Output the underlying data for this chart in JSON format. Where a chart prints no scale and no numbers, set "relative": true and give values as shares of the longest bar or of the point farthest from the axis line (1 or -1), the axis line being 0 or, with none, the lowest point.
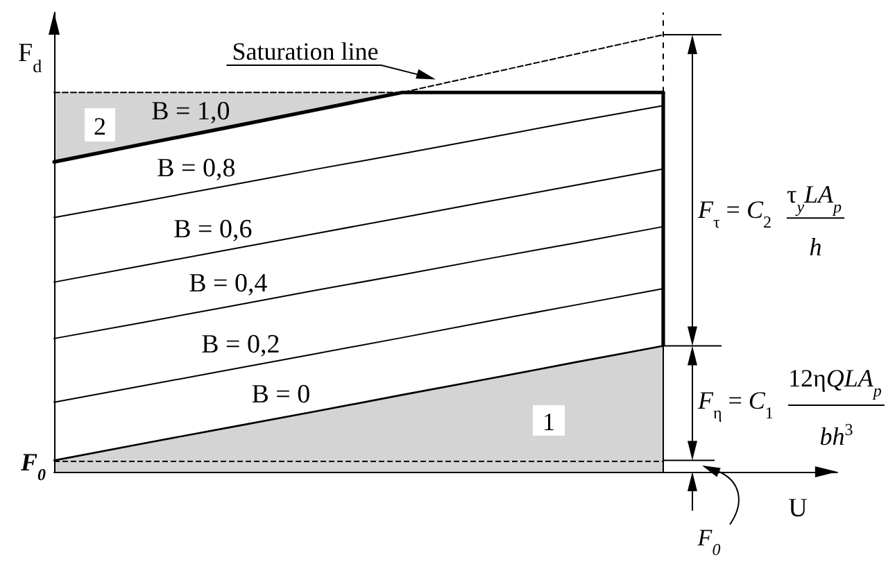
{
  "chart_data": {
    "type": "line",
    "relative": true,
    "marker": "none",
    "line_style": "solid",
    "xlabel": "U",
    "ylabel": "F$_{d}$",
    "categories": [
      null,
      null,
      null,
      null,
      null,
      null,
      null,
      null,
      null,
      null
    ],
    "series": [
      {
        "color": "#000000",
        "line_style": "dashed",
        "values": [
          0.868,
          0.868,
          0.868,
          0.868,
          0.868,
          0.912,
          0.956,
          1,
          null,
          null
        ],
        "lower": [
          0.709,
          0.749,
          0.788,
          0.828,
          0.868,
          null,
          null,
          null,
          null,
          null
        ],
        "upper": [
          0.868,
          0.868,
          0.868,
          0.868,
          0.868,
          null,
          null,
          null,
          null,
          null
        ]
      },
      {
        "name": "B = 1,0",
        "color": "#000000",
        "values": [
          0.709,
          0.749,
          0.788,
          0.828,
          0.868,
          0.868,
          0.868,
          0.868,
          null,
          null
        ]
      },
      {
        "name": "B = 0,8",
        "color": "#000000",
        "values": [
          0.582,
          0.618,
          0.655,
          0.692,
          0.728,
          0.765,
          0.802,
          0.838,
          null,
          null
        ]
      },
      {
        "name": "B = 0,6",
        "color": "#000000",
        "values": [
          0.434,
          0.471,
          0.508,
          0.545,
          0.582,
          0.619,
          0.656,
          0.693,
          null,
          null
        ]
      },
      {
        "name": "B = 0,4",
        "color": "#000000",
        "values": [
          0.305,
          0.341,
          0.378,
          0.415,
          0.451,
          0.488,
          0.524,
          0.561,
          null,
          null
        ]
      },
      {
        "name": "B = 0,2",
        "color": "#000000",
        "values": [
          0.159,
          0.196,
          0.233,
          0.27,
          0.307,
          0.345,
          0.382,
          0.419,
          null,
          null
        ]
      },
      {
        "name": "B = 0",
        "type": "area",
        "color": "#000000",
        "values": [
          0.026,
          0.064,
          0.101,
          0.138,
          0.176,
          0.213,
          0.251,
          0.288,
          null,
          null
        ]
      }
    ],
    "ref_lines": [
      {
        "axis": "y",
        "value": 0.026,
        "label": "F$_{0}$",
        "line_style": "dashed",
        "color": "#000000"
      }
    ],
    "annotations": [
      "Saturation line",
      "2",
      "1",
      "F$_{τ}$ = C$_{2}$",
      "τ$_{y}$LA$_{p}$",
      "h",
      "F$_{η}$ = C$_{1}$",
      "12ηQLA$_{p}$",
      "bh$^{3}$",
      "F$_{0}$"
    ]
  }
}
